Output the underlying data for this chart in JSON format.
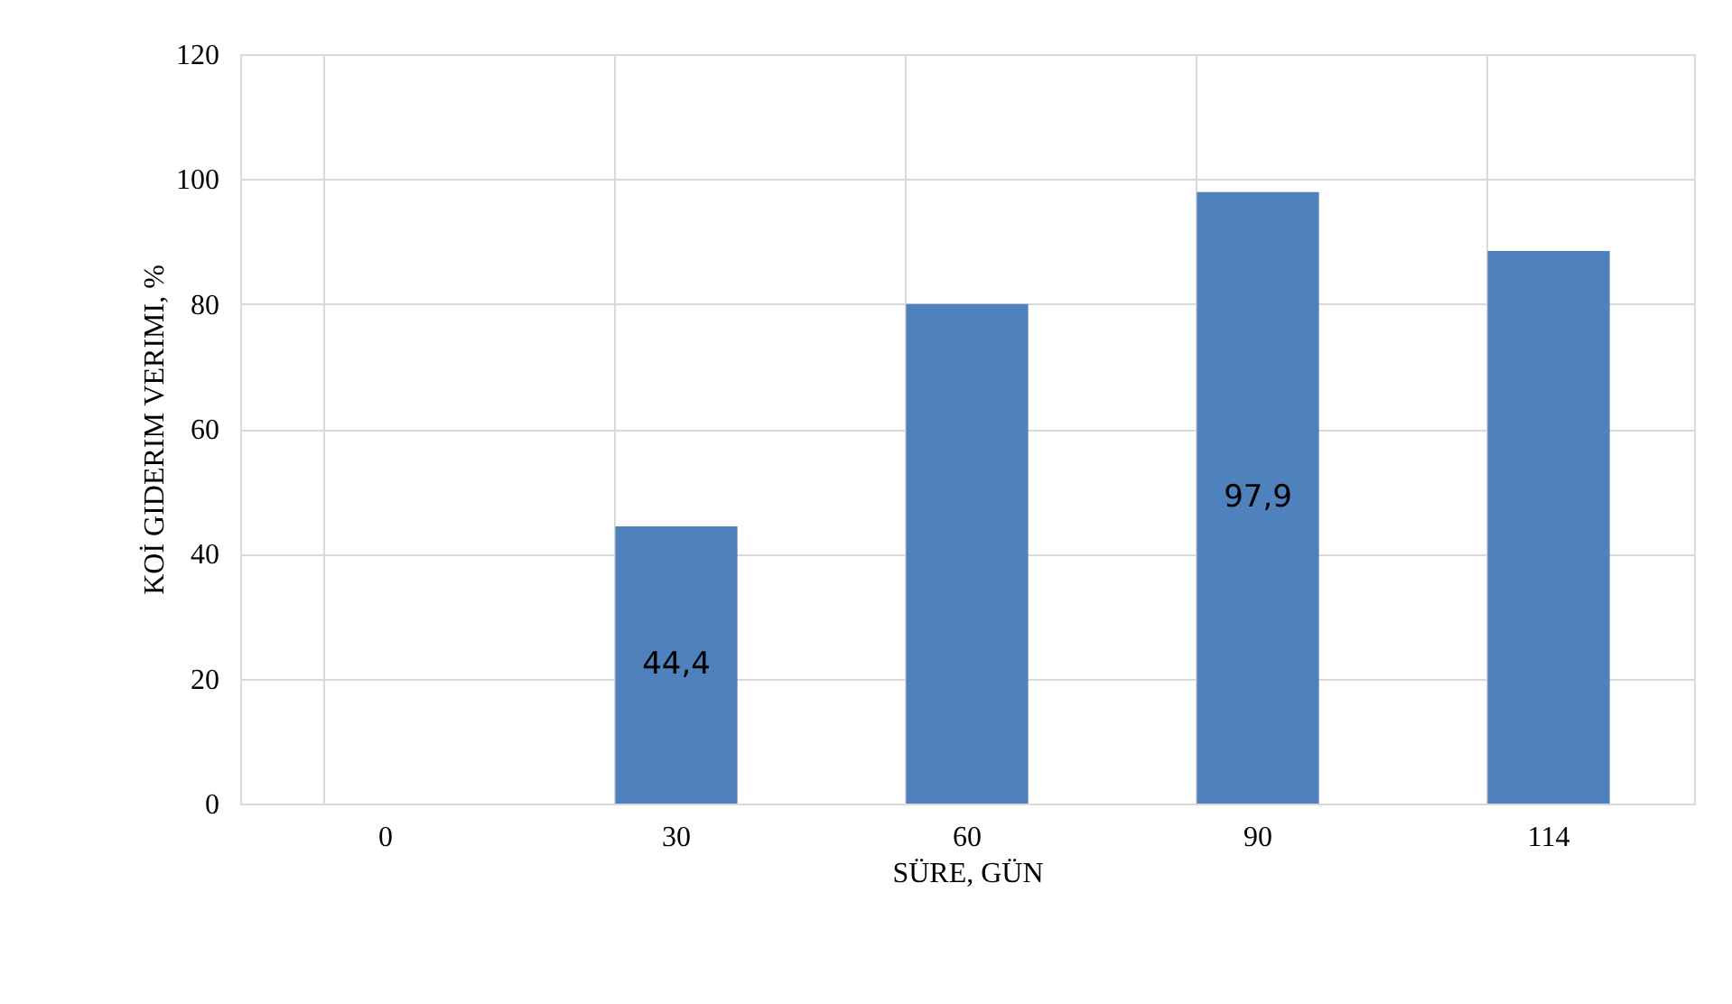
{
  "chart_data": {
    "type": "bar",
    "xlabel": "SÜRE, GÜN",
    "ylabel": "KOİ GIDERIM VERIMI, %",
    "categories": [
      "0",
      "30",
      "60",
      "90",
      "114"
    ],
    "values": [
      0,
      44.4,
      80,
      97.9,
      88.5
    ],
    "value_labels": [
      null,
      "44,4",
      null,
      "97,9",
      null
    ],
    "color": "#4f81bd",
    "ylim": [
      0,
      120
    ],
    "yticks": [
      0,
      20,
      40,
      60,
      80,
      100,
      120
    ],
    "grid": true
  }
}
